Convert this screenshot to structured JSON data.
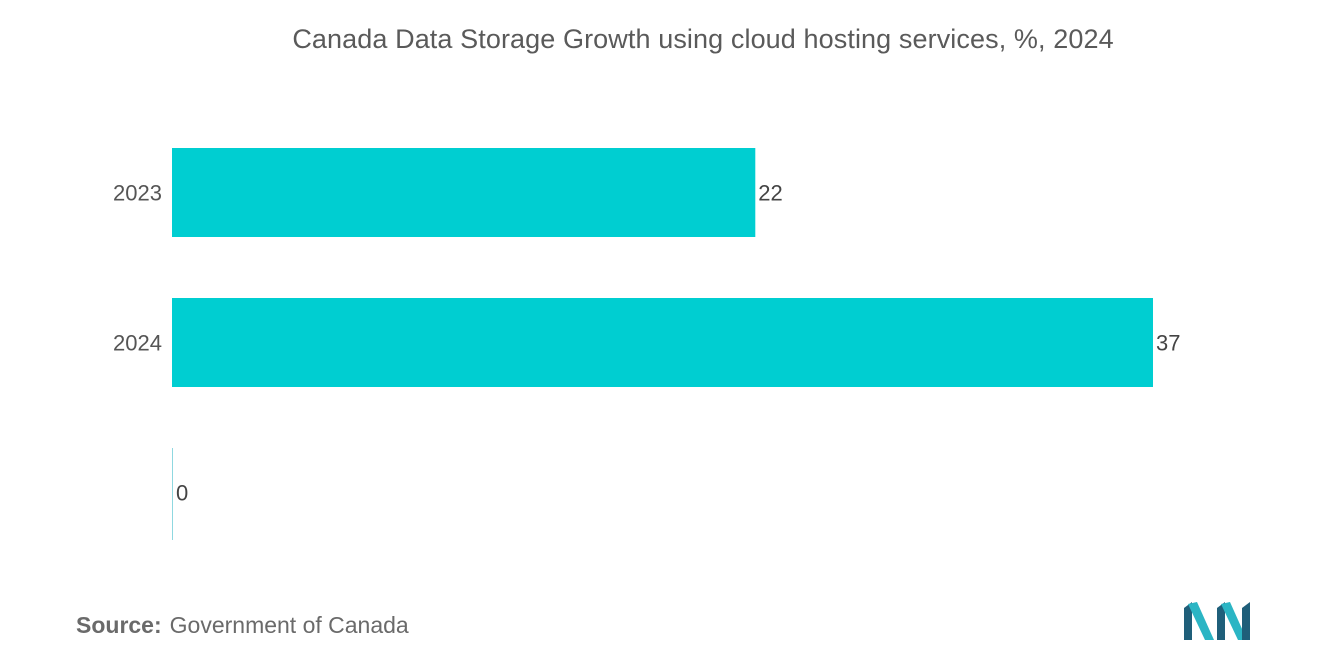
{
  "chart_data": {
    "type": "bar",
    "orientation": "horizontal",
    "title": "Canada Data Storage Growth using cloud hosting services, %,  2024",
    "categories": [
      "2023",
      "2024",
      ""
    ],
    "values": [
      22,
      37,
      0
    ],
    "value_labels": [
      "22",
      "37",
      "0"
    ],
    "xlim": [
      0,
      37
    ],
    "grid": false,
    "legend": "none",
    "bar_color": "#00ced1"
  },
  "source": {
    "label": "Source:",
    "text": "Government of Canada"
  },
  "logo": {
    "icon": "mordor-intelligence-logo",
    "colors": [
      "#1f5f7a",
      "#2bb5c4"
    ]
  }
}
